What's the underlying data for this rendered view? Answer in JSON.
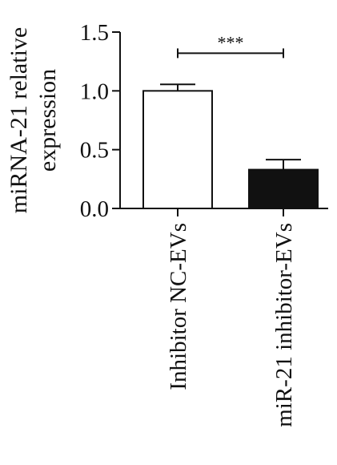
{
  "chart_data": {
    "type": "bar",
    "title": "",
    "xlabel": "",
    "ylabel_lines": [
      "miRNA-21 relative",
      "expression"
    ],
    "categories": [
      "Inhibitor NC-EVs",
      "miR-21 inhibitor-EVs"
    ],
    "values": [
      1.0,
      0.33
    ],
    "errors": [
      0.055,
      0.085
    ],
    "bar_fills": [
      "#ffffff",
      "#111111"
    ],
    "ylim": [
      0,
      1.5
    ],
    "yticks": [
      "0.0",
      "0.5",
      "1.0",
      "1.5"
    ],
    "grid": false,
    "significance": {
      "between": [
        0,
        1
      ],
      "y_value": 1.32,
      "label": "***"
    }
  }
}
